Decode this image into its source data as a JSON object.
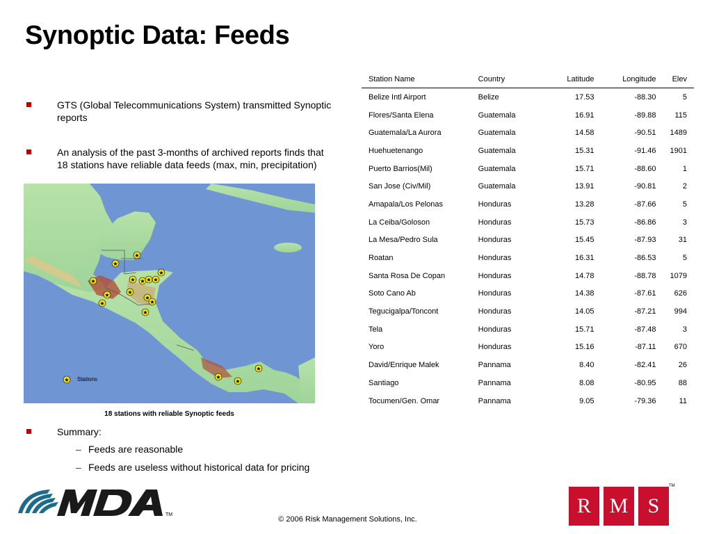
{
  "slide": {
    "title": "Synoptic Data: Feeds",
    "bullets": [
      "GTS (Global Telecommunications System) transmitted Synoptic reports",
      "An analysis of the past 3-months of archived reports finds that 18 stations have reliable data feeds (max, min, precipitation)",
      "Summary:"
    ],
    "sub_bullets": [
      "Feeds are reasonable",
      "Feeds are useless without historical data for pricing"
    ],
    "sub_bullet_marker": "–",
    "map": {
      "legend_label": "Stations",
      "caption": "18 stations with reliable Synoptic feeds",
      "colors": {
        "ocean": "#6f96d2",
        "lowland": "#a8dca0",
        "highland": "#d9c98a",
        "mountain": "#b0503a"
      }
    },
    "footer": "© 2006 Risk Management Solutions, Inc.",
    "logos": {
      "mda": "MDA",
      "mda_tm": "TM",
      "rms": [
        "R",
        "M",
        "S"
      ],
      "rms_tm": "TM"
    },
    "accent_color": "#c00000"
  },
  "table": {
    "headers": [
      "Station Name",
      "Country",
      "Latitude",
      "Longitude",
      "Elev"
    ],
    "rows": [
      [
        "Belize Intl Airport",
        "Belize",
        "17.53",
        "-88.30",
        "5"
      ],
      [
        "Flores/Santa Elena",
        "Guatemala",
        "16.91",
        "-89.88",
        "115"
      ],
      [
        "Guatemala/La Aurora",
        "Guatemala",
        "14.58",
        "-90.51",
        "1489"
      ],
      [
        "Huehuetenango",
        "Guatemala",
        "15.31",
        "-91.46",
        "1901"
      ],
      [
        "Puerto Barrios(Mil)",
        "Guatemala",
        "15.71",
        "-88.60",
        "1"
      ],
      [
        "San Jose (Civ/Mil)",
        "Guatemala",
        "13.91",
        "-90.81",
        "2"
      ],
      [
        "Amapala/Los Pelonas",
        "Honduras",
        "13.28",
        "-87.66",
        "5"
      ],
      [
        "La Ceiba/Goloson",
        "Honduras",
        "15.73",
        "-86.86",
        "3"
      ],
      [
        "La Mesa/Pedro Sula",
        "Honduras",
        "15.45",
        "-87.93",
        "31"
      ],
      [
        "Roatan",
        "Honduras",
        "16.31",
        "-86.53",
        "5"
      ],
      [
        "Santa Rosa De Copan",
        "Honduras",
        "14.78",
        "-88.78",
        "1079"
      ],
      [
        "Soto Cano Ab",
        "Honduras",
        "14.38",
        "-87.61",
        "626"
      ],
      [
        "Tegucigalpa/Toncont",
        "Honduras",
        "14.05",
        "-87.21",
        "994"
      ],
      [
        "Tela",
        "Honduras",
        "15.71",
        "-87.48",
        "3"
      ],
      [
        "Yoro",
        "Honduras",
        "15.16",
        "-87.11",
        "670"
      ],
      [
        "David/Enrique Malek",
        "Pannama",
        "8.40",
        "-82.41",
        "26"
      ],
      [
        "Santiago",
        "Pannama",
        "8.08",
        "-80.95",
        "88"
      ],
      [
        "Tocumen/Gen. Omar",
        "Pannama",
        "9.05",
        "-79.36",
        "11"
      ]
    ]
  }
}
